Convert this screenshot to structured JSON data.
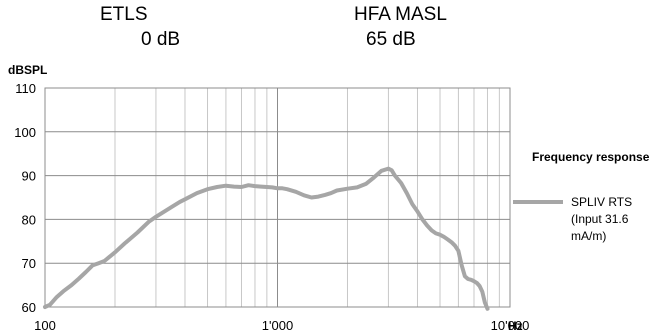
{
  "header": {
    "left_label": "ETLS",
    "left_value": "0 dB",
    "right_label": "HFA MASL",
    "right_value": "65 dB"
  },
  "chart_data": {
    "type": "line",
    "title": "",
    "xlabel": "Hz",
    "ylabel": "dBSPL",
    "xscale": "log",
    "xlim": [
      100,
      10000
    ],
    "ylim": [
      60,
      110
    ],
    "xticks": [
      100,
      1000,
      10000
    ],
    "xtick_labels": [
      "100",
      "1'000",
      "10'000"
    ],
    "yticks": [
      60,
      70,
      80,
      90,
      100,
      110
    ],
    "grid": true,
    "legend": {
      "title": "Frequency response",
      "position": "right"
    },
    "series": [
      {
        "name": "SPLIV RTS (Input 31.6 mA/m)",
        "legend_lines": [
          "SPLIV RTS",
          "(Input 31.6",
          "mA/m)"
        ],
        "color": "#a6a6a6",
        "x": [
          100,
          105,
          112,
          120,
          130,
          140,
          150,
          160,
          170,
          180,
          190,
          200,
          220,
          250,
          280,
          300,
          350,
          380,
          400,
          450,
          500,
          550,
          600,
          650,
          700,
          750,
          800,
          850,
          900,
          950,
          1000,
          1050,
          1100,
          1200,
          1300,
          1400,
          1500,
          1600,
          1700,
          1800,
          2000,
          2200,
          2400,
          2600,
          2800,
          3000,
          3100,
          3200,
          3400,
          3600,
          3800,
          4000,
          4200,
          4400,
          4600,
          4800,
          5000,
          5200,
          5400,
          5600,
          5800,
          6000,
          6200,
          6400,
          6600,
          6800,
          7000,
          7200,
          7400,
          7600,
          7800,
          8000
        ],
        "y": [
          60,
          60.5,
          62.2,
          63.6,
          65,
          66.5,
          68,
          69.5,
          70,
          70.5,
          71.5,
          72.5,
          74.5,
          77,
          79.5,
          80.6,
          82.8,
          84,
          84.6,
          86,
          86.9,
          87.4,
          87.7,
          87.5,
          87.4,
          87.8,
          87.6,
          87.5,
          87.4,
          87.3,
          87.1,
          87.1,
          86.9,
          86.3,
          85.5,
          85,
          85.2,
          85.6,
          86,
          86.6,
          87,
          87.3,
          88.1,
          89.6,
          91.1,
          91.6,
          91.2,
          90,
          88.3,
          86,
          83.5,
          81.8,
          80,
          78.6,
          77.5,
          76.8,
          76.5,
          76,
          75.4,
          74.8,
          74,
          72.8,
          69.5,
          67,
          66.4,
          66.2,
          65.9,
          65.5,
          64.8,
          63.5,
          61,
          59.6
        ]
      }
    ]
  }
}
